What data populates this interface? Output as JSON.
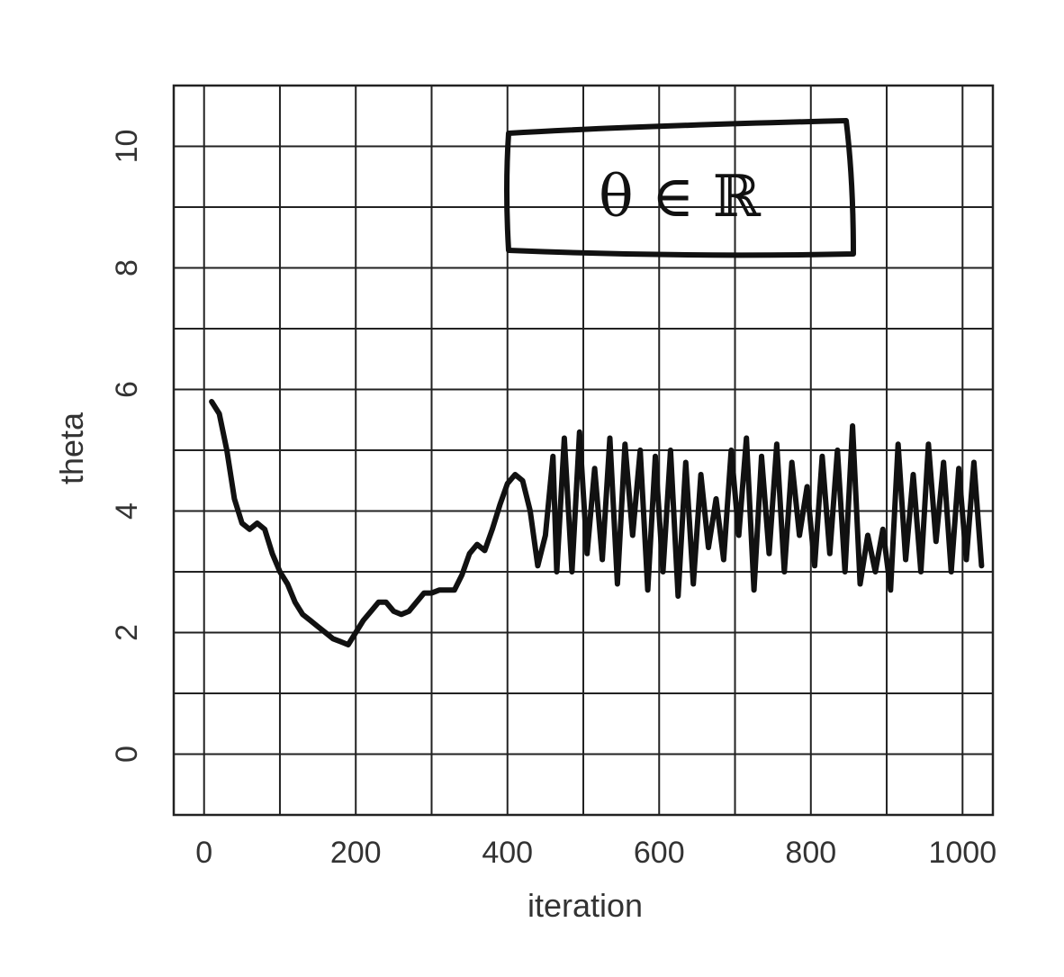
{
  "chart_data": {
    "type": "line",
    "xlabel": "iteration",
    "ylabel": "theta",
    "xlim": [
      -40,
      1040
    ],
    "ylim": [
      -1,
      11
    ],
    "grid": true,
    "x_ticks": [
      0,
      200,
      400,
      600,
      800,
      1000
    ],
    "y_ticks": [
      0,
      2,
      4,
      6,
      8,
      10
    ],
    "annotation": "θ ∈ ℝ",
    "colors": {
      "line": "#111111",
      "grid": "#222222",
      "text": "#333333"
    },
    "series": [
      {
        "x": [
          10,
          20,
          30,
          40,
          50,
          60,
          70,
          80,
          90,
          100,
          110,
          120,
          130,
          140,
          150,
          160,
          170,
          180,
          190,
          200,
          210,
          220,
          230,
          240,
          250,
          260,
          270,
          280,
          290,
          300,
          310,
          320,
          330,
          340,
          350,
          360,
          370,
          380,
          390,
          400,
          410,
          420,
          430,
          440,
          450,
          460,
          465,
          475,
          485,
          495,
          505,
          515,
          525,
          535,
          545,
          555,
          565,
          575,
          585,
          595,
          605,
          615,
          625,
          635,
          645,
          655,
          665,
          675,
          685,
          695,
          705,
          715,
          725,
          735,
          745,
          755,
          765,
          775,
          785,
          795,
          805,
          815,
          825,
          835,
          845,
          855,
          865,
          875,
          885,
          895,
          905,
          915,
          925,
          935,
          945,
          955,
          965,
          975,
          985,
          995,
          1005,
          1015,
          1025
        ],
        "y": [
          5.8,
          5.6,
          5.0,
          4.2,
          3.8,
          3.7,
          3.8,
          3.7,
          3.3,
          3.0,
          2.8,
          2.5,
          2.3,
          2.2,
          2.1,
          2.0,
          1.9,
          1.85,
          1.8,
          2.0,
          2.2,
          2.35,
          2.5,
          2.5,
          2.35,
          2.3,
          2.35,
          2.5,
          2.65,
          2.65,
          2.7,
          2.7,
          2.7,
          2.95,
          3.3,
          3.45,
          3.35,
          3.7,
          4.1,
          4.45,
          4.6,
          4.5,
          4.0,
          3.1,
          3.6,
          4.9,
          3.0,
          5.2,
          3.0,
          5.3,
          3.3,
          4.7,
          3.2,
          5.2,
          2.8,
          5.1,
          3.6,
          5.0,
          2.7,
          4.9,
          3.0,
          5.0,
          2.6,
          4.8,
          2.8,
          4.6,
          3.4,
          4.2,
          3.2,
          5.0,
          3.6,
          5.2,
          2.7,
          4.9,
          3.3,
          5.1,
          3.0,
          4.8,
          3.6,
          4.4,
          3.1,
          4.9,
          3.3,
          5.0,
          3.0,
          5.4,
          2.8,
          3.6,
          3.0,
          3.7,
          2.7,
          5.1,
          3.2,
          4.6,
          3.0,
          5.1,
          3.5,
          4.8,
          3.0,
          4.7,
          3.2,
          4.8,
          3.1
        ]
      }
    ]
  }
}
